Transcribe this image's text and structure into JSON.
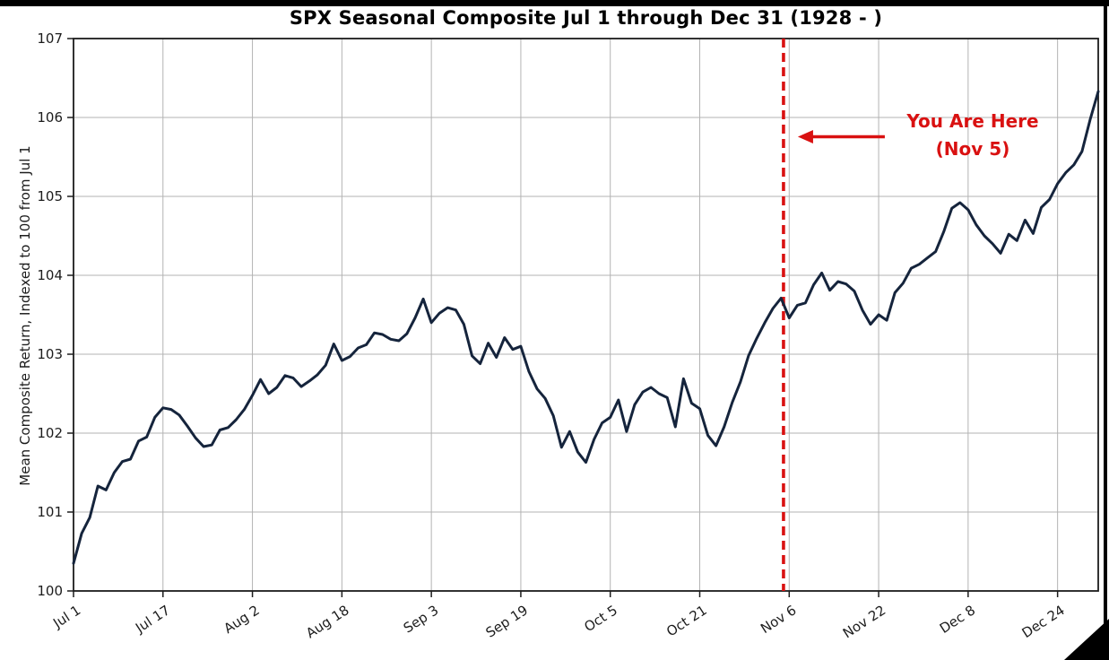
{
  "title": "SPX Seasonal Composite Jul 1 through Dec 31 (1928 - )",
  "y_axis": {
    "label": "Mean Composite Return, Indexed to 100 from Jul 1",
    "ticks": [
      100,
      101,
      102,
      103,
      104,
      105,
      106,
      107
    ]
  },
  "x_axis": {
    "tick_labels": [
      "Jul 1",
      "Jul 17",
      "Aug 2",
      "Aug 18",
      "Sep 3",
      "Sep 19",
      "Oct 5",
      "Oct 21",
      "Nov 6",
      "Nov 22",
      "Dec 8",
      "Dec 24"
    ],
    "tick_day_indices": [
      0,
      11,
      22,
      33,
      44,
      55,
      66,
      77,
      88,
      99,
      110,
      121
    ]
  },
  "annotation": {
    "line1": "You Are Here",
    "line2": "(Nov 5)",
    "marker_day_index": 87.3,
    "color": "#d91111"
  },
  "colors": {
    "series_line": "#15243c",
    "marker_red": "#d91111",
    "gridline": "#b3b3b3",
    "spine": "#1c1c1c",
    "tick_text": "#1c1c1c"
  },
  "chart_data": {
    "type": "line",
    "title": "SPX Seasonal Composite Jul 1 through Dec 31 (1928 - )",
    "xlabel": "",
    "ylabel": "Mean Composite Return, Indexed to 100 from Jul 1",
    "ylim": [
      100,
      107
    ],
    "grid": true,
    "legend": "none",
    "x_unit": "trading-day index from Jul 1",
    "x_tick_labels": [
      "Jul 1",
      "Jul 17",
      "Aug 2",
      "Aug 18",
      "Sep 3",
      "Sep 19",
      "Oct 5",
      "Oct 21",
      "Nov 6",
      "Nov 22",
      "Dec 8",
      "Dec 24"
    ],
    "x_tick_day_indices": [
      0,
      11,
      22,
      33,
      44,
      55,
      66,
      77,
      88,
      99,
      110,
      121
    ],
    "marker": {
      "label": "You Are Here (Nov 5)",
      "day_index": 87.3,
      "style": "vertical dashed red line"
    },
    "series": [
      {
        "name": "Mean composite return indexed to 100",
        "values": [
          100.35,
          100.73,
          100.93,
          101.33,
          101.28,
          101.5,
          101.64,
          101.67,
          101.9,
          101.95,
          102.2,
          102.32,
          102.3,
          102.23,
          102.09,
          101.94,
          101.83,
          101.85,
          102.04,
          102.07,
          102.17,
          102.3,
          102.48,
          102.68,
          102.5,
          102.58,
          102.73,
          102.7,
          102.59,
          102.66,
          102.74,
          102.86,
          103.13,
          102.92,
          102.97,
          103.08,
          103.12,
          103.27,
          103.25,
          103.19,
          103.17,
          103.26,
          103.46,
          103.7,
          103.4,
          103.52,
          103.59,
          103.56,
          103.38,
          102.98,
          102.88,
          103.14,
          102.96,
          103.21,
          103.06,
          103.1,
          102.78,
          102.56,
          102.44,
          102.22,
          101.82,
          102.02,
          101.76,
          101.63,
          101.92,
          102.13,
          102.2,
          102.42,
          102.02,
          102.36,
          102.52,
          102.58,
          102.5,
          102.45,
          102.08,
          102.69,
          102.38,
          102.31,
          101.97,
          101.84,
          102.08,
          102.39,
          102.65,
          102.98,
          103.2,
          103.4,
          103.58,
          103.71,
          103.46,
          103.62,
          103.65,
          103.88,
          104.03,
          103.81,
          103.92,
          103.89,
          103.8,
          103.56,
          103.38,
          103.5,
          103.43,
          103.78,
          103.9,
          104.09,
          104.14,
          104.22,
          104.3,
          104.55,
          104.85,
          104.92,
          104.83,
          104.64,
          104.5,
          104.4,
          104.28,
          104.52,
          104.44,
          104.7,
          104.53,
          104.86,
          104.96,
          105.16,
          105.3,
          105.4,
          105.57,
          105.97,
          106.33
        ]
      }
    ]
  }
}
